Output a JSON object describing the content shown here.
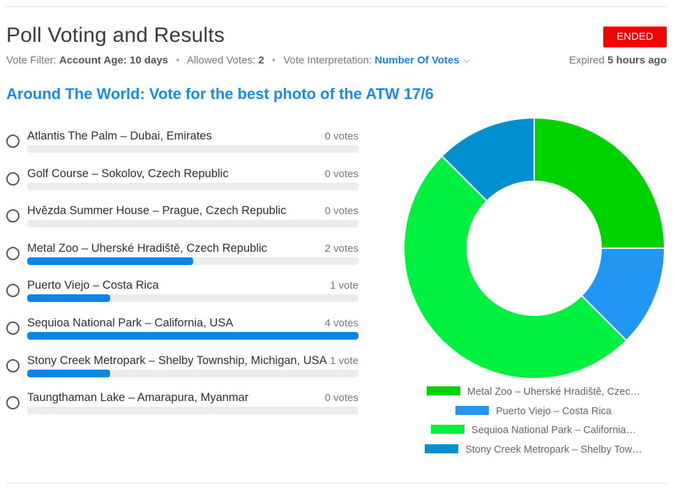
{
  "header": {
    "title": "Poll Voting and Results",
    "status": "ENDED",
    "vote_filter_label": "Vote Filter:",
    "vote_filter_value": "Account Age: 10 days",
    "allowed_votes_label": "Allowed Votes:",
    "allowed_votes_value": "2",
    "vote_interpretation_label": "Vote Interpretation:",
    "vote_interpretation_value": "Number Of Votes",
    "expired_label": "Expired",
    "expired_value": "5 hours ago"
  },
  "poll": {
    "title": "Around The World: Vote for the best photo of the ATW 17/6",
    "options": [
      {
        "label": "Atlantis The Palm – Dubai, Emirates",
        "votes_text": "0 votes",
        "fraction": 0
      },
      {
        "label": "Golf Course – Sokolov, Czech Republic",
        "votes_text": "0 votes",
        "fraction": 0
      },
      {
        "label": "Hvězda Summer House – Prague, Czech Republic",
        "votes_text": "0 votes",
        "fraction": 0
      },
      {
        "label": "Metal Zoo – Uherské Hradiště, Czech Republic",
        "votes_text": "2 votes",
        "fraction": 0.5
      },
      {
        "label": "Puerto Viejo – Costa Rica",
        "votes_text": "1 vote",
        "fraction": 0.25
      },
      {
        "label": "Sequioa National Park – California, USA",
        "votes_text": "4 votes",
        "fraction": 1
      },
      {
        "label": "Stony Creek Metropark – Shelby Township, Michigan, USA",
        "votes_text": "1 vote",
        "fraction": 0.25
      },
      {
        "label": "Taungthaman Lake – Amarapura, Myanmar",
        "votes_text": "0 votes",
        "fraction": 0
      }
    ]
  },
  "chart_data": {
    "type": "pie",
    "donut": true,
    "categories": [
      "Metal Zoo – Uherské Hradiště, Czec…",
      "Puerto Viejo – Costa Rica",
      "Sequioa National Park – California…",
      "Stony Creek Metropark – Shelby Tow…"
    ],
    "values": [
      2,
      1,
      4,
      1
    ],
    "colors": [
      "#00d100",
      "#2196f3",
      "#00f040",
      "#0090d0"
    ],
    "legend_placement": "bottom"
  }
}
